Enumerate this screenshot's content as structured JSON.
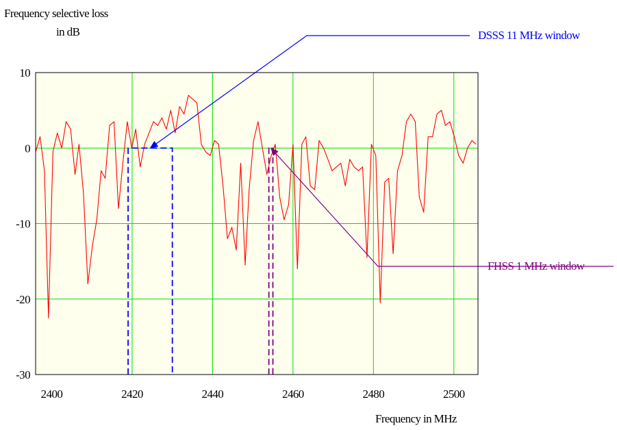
{
  "chart_data": {
    "type": "line",
    "title": "",
    "ylabel_lines": [
      "Frequency selective loss",
      "in dB"
    ],
    "xlabel": "Frequency in MHz",
    "xlim": [
      2396,
      2506
    ],
    "ylim": [
      -30,
      10
    ],
    "x_ticks": [
      2400,
      2420,
      2440,
      2460,
      2480,
      2500
    ],
    "y_ticks": [
      10,
      0,
      -10,
      -20,
      -30
    ],
    "grid": true,
    "colors": {
      "plot_background": "#ffffee",
      "grid": "#00dd00",
      "frame": "#000000",
      "series": "#ff0000",
      "dsss": "#0000ff",
      "fhss": "#800080"
    },
    "series": [
      {
        "x": [
          2396.0,
          2397.1,
          2398.2,
          2399.2,
          2400.3,
          2401.4,
          2402.5,
          2403.6,
          2404.7,
          2405.8,
          2406.8,
          2407.9,
          2409.0,
          2410.1,
          2411.2,
          2412.3,
          2413.3,
          2414.4,
          2415.5,
          2416.6,
          2417.7,
          2418.8,
          2419.9,
          2420.9,
          2422.0,
          2423.1,
          2424.2,
          2425.3,
          2426.4,
          2427.4,
          2428.5,
          2429.6,
          2430.7,
          2431.8,
          2432.9,
          2434.0,
          2435.0,
          2436.1,
          2437.2,
          2438.3,
          2439.4,
          2440.5,
          2441.5,
          2442.6,
          2443.7,
          2444.8,
          2445.9,
          2447.0,
          2448.1,
          2449.1,
          2450.2,
          2451.3,
          2452.4,
          2453.5,
          2454.6,
          2455.6,
          2456.7,
          2457.8,
          2458.9,
          2460.0,
          2461.1,
          2462.2,
          2463.2,
          2464.3,
          2465.4,
          2466.5,
          2467.6,
          2468.7,
          2469.7,
          2470.8,
          2471.9,
          2473.0,
          2474.1,
          2475.2,
          2476.3,
          2477.3,
          2478.4,
          2479.5,
          2480.6,
          2481.7,
          2482.8,
          2483.8,
          2484.9,
          2486.0,
          2487.1,
          2488.2,
          2489.3,
          2490.4,
          2491.4,
          2492.5,
          2493.6,
          2494.7,
          2495.8,
          2496.9,
          2497.9,
          2499.0,
          2500.1,
          2501.2,
          2502.3,
          2503.4,
          2504.5,
          2505.5
        ],
        "y": [
          -0.5,
          1.5,
          -3.0,
          -22.5,
          -0.5,
          2.0,
          0.0,
          3.5,
          2.5,
          -3.5,
          0.5,
          -6.0,
          -18.0,
          -13.0,
          -9.5,
          -3.0,
          -4.0,
          3.0,
          3.5,
          -8.0,
          -2.0,
          3.5,
          0.0,
          2.5,
          -2.5,
          0.5,
          2.0,
          3.5,
          3.0,
          4.0,
          2.5,
          5.0,
          2.0,
          5.5,
          4.5,
          7.0,
          6.5,
          6.0,
          0.5,
          -0.5,
          -1.0,
          1.0,
          0.5,
          -5.0,
          -12.0,
          -10.5,
          -13.5,
          -2.0,
          -15.5,
          -5.5,
          1.0,
          3.5,
          0.0,
          -3.5,
          -1.0,
          0.5,
          -6.5,
          -9.5,
          -7.5,
          0.5,
          -16.0,
          0.5,
          1.5,
          -5.0,
          -5.5,
          1.0,
          0.0,
          -1.5,
          -3.0,
          -2.5,
          -2.0,
          -5.0,
          -1.5,
          -2.5,
          -3.0,
          -2.5,
          -14.5,
          0.5,
          -1.0,
          -20.5,
          -4.5,
          -4.0,
          -14.0,
          -3.0,
          -1.0,
          3.5,
          4.5,
          3.5,
          -6.5,
          -8.5,
          1.5,
          1.5,
          4.5,
          5.0,
          3.0,
          3.5,
          1.5,
          -1.0,
          -2.0,
          0.0,
          1.0,
          0.5
        ]
      }
    ],
    "annotations": [
      {
        "label": "DSSS 11 MHz window",
        "color": "#0000ff",
        "window": {
          "x_start": 2419,
          "x_end": 2430,
          "y_top": 0,
          "y_bottom": -30
        },
        "pointer_at": {
          "x": 2424.5,
          "y": 0
        }
      },
      {
        "label": "FHSS 1 MHz window",
        "color": "#800080",
        "window": {
          "x_start": 2454,
          "x_end": 2455,
          "y_top": 0,
          "y_bottom": -30
        },
        "pointer_at": {
          "x": 2454.5,
          "y": 0
        }
      }
    ]
  }
}
